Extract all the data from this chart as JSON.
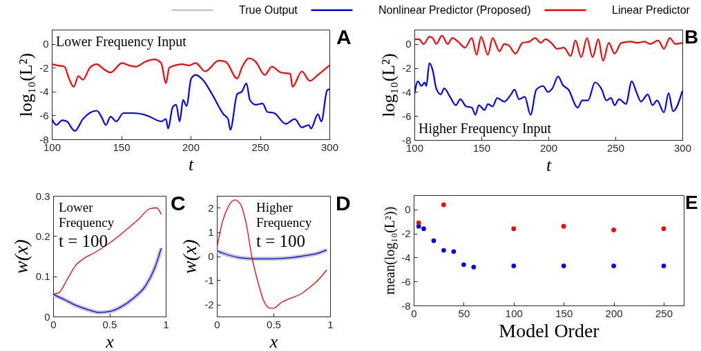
{
  "chart_data": [
    {
      "type": "line",
      "xlabel": "t",
      "ylabel": "log₁₀(L²)",
      "xlim": [
        100,
        300
      ],
      "ylim": [
        -8,
        1.2
      ],
      "xticks": [
        100,
        150,
        200,
        250,
        300
      ],
      "yticks": [
        -8,
        -6,
        -4,
        -2,
        0
      ],
      "annotations": [
        "A",
        "Lower Frequency Input"
      ],
      "series": [
        {
          "color": "#0000ff",
          "x": [
            100,
            103.3,
            107.5,
            110.8,
            116.6,
            122.4,
            132.4,
            135.7,
            139,
            142.3,
            146.5,
            151.5,
            158.9,
            165.6,
            170.5,
            178.8,
            182.2,
            183.8,
            187.1,
            189.6,
            192.1,
            194.6,
            197.1,
            200.4,
            203.7,
            208.7,
            215.4,
            223.7,
            227,
            228.6,
            233.6,
            236.9,
            240.2,
            242.7,
            246.9,
            251.9,
            255.2,
            260.2,
            268.5,
            275.1,
            280.1,
            285.1,
            286.7,
            291.7,
            294.2,
            298.3,
            300
          ],
          "values": [
            -6.3,
            -6.8,
            -6.4,
            -6.5,
            -7.3,
            -6.3,
            -5.6,
            -6.1,
            -6.8,
            -6.1,
            -6.5,
            -5.8,
            -5.8,
            -5.9,
            -6.1,
            -6.5,
            -6.3,
            -7.1,
            -5.3,
            -5.1,
            -6.5,
            -4.7,
            -5.2,
            -2.9,
            -2.6,
            -3,
            -4.2,
            -5.9,
            -6.3,
            -7.2,
            -4.2,
            -4,
            -3.3,
            -4.7,
            -5.1,
            -5,
            -5.7,
            -5.8,
            -6.7,
            -6.3,
            -7,
            -6.8,
            -7.1,
            -5.9,
            -6.5,
            -3.9,
            -3.8
          ]
        },
        {
          "color": "#ff0000",
          "x": [
            100,
            104.1,
            109.1,
            112.4,
            115.8,
            119.1,
            122.4,
            127.4,
            132.4,
            137.3,
            142.3,
            150.6,
            155.6,
            160.6,
            167.2,
            173.9,
            178.8,
            182.2,
            184.6,
            188.8,
            193.8,
            198.8,
            203.7,
            210.4,
            220.3,
            225.3,
            233.6,
            236.9,
            241.9,
            246.9,
            253.5,
            258.5,
            265.1,
            271.8,
            273.4,
            280.1,
            285.9,
            291.7,
            300
          ],
          "values": [
            -1.7,
            -1.8,
            -1.9,
            -2.9,
            -3.6,
            -2.7,
            -3,
            -2,
            -1.7,
            -2.1,
            -2.4,
            -1.6,
            -1.8,
            -1.9,
            -1.5,
            -1.3,
            -1.6,
            -3.3,
            -2,
            -1.8,
            -1.7,
            -1.8,
            -1.6,
            -2.3,
            -1.4,
            -1.5,
            -2.9,
            -2,
            -1.2,
            -1.5,
            -2.6,
            -1.9,
            -2.4,
            -2.5,
            -3.6,
            -2.3,
            -3.1,
            -2.6,
            -1.8
          ]
        }
      ]
    },
    {
      "type": "line",
      "xlabel": "t",
      "ylabel": "log₁₀(L²)",
      "xlim": [
        100,
        300
      ],
      "ylim": [
        -8,
        1.2
      ],
      "xticks": [
        100,
        150,
        200,
        250,
        300
      ],
      "yticks": [
        -8,
        -6,
        -4,
        -2,
        0
      ],
      "annotations": [
        "B",
        "Higher Frequency Input"
      ],
      "series": [
        {
          "color": "#0000ff",
          "x": [
            100,
            102.6,
            105.2,
            107.7,
            108.9,
            111.2,
            113.7,
            116.3,
            119.7,
            122.3,
            126.6,
            130.9,
            134.3,
            138.6,
            142.9,
            145.5,
            148.1,
            152.4,
            154.9,
            158.4,
            161.8,
            167,
            172.1,
            174.7,
            178.1,
            182.4,
            186.7,
            191,
            196.1,
            199.6,
            203,
            207.3,
            210.7,
            215,
            221.9,
            225.3,
            229.6,
            234.8,
            239.9,
            243.3,
            246.8,
            249.4,
            252.8,
            257.9,
            262.2,
            265.7,
            269.1,
            274.2,
            277.7,
            281.1,
            286.3,
            289.7,
            293.1,
            300
          ],
          "values": [
            -4.2,
            -3.1,
            -3.5,
            -3.2,
            -3.5,
            -1.6,
            -2.2,
            -3.7,
            -4.2,
            -3.7,
            -4.4,
            -5.1,
            -4.6,
            -5.2,
            -5.3,
            -5.9,
            -5.1,
            -5.5,
            -5,
            -5.2,
            -4.5,
            -4.8,
            -4.2,
            -3.8,
            -4.6,
            -4.4,
            -5.9,
            -3.8,
            -3.5,
            -4,
            -3.7,
            -2.7,
            -3.4,
            -3.8,
            -5.3,
            -4.7,
            -4.7,
            -3.2,
            -3.8,
            -4.7,
            -4.5,
            -5.1,
            -4.6,
            -5,
            -3.1,
            -4,
            -4.8,
            -4.2,
            -5.1,
            -4.7,
            -5.7,
            -4.1,
            -5.6,
            -3.9
          ]
        },
        {
          "color": "#ff0000",
          "x": [
            100,
            103.4,
            106.9,
            111.2,
            113.7,
            116.3,
            120.6,
            124.9,
            128.3,
            132.6,
            137.8,
            142.9,
            146.4,
            149.8,
            154.9,
            158.4,
            163.5,
            167,
            170.4,
            175.5,
            180.7,
            185.8,
            190.1,
            194.4,
            197.9,
            203,
            206.4,
            211.6,
            216.7,
            220.2,
            224.5,
            228.8,
            233,
            237.3,
            240.8,
            245.1,
            249.4,
            254.5,
            261.4,
            266.5,
            271.7,
            276,
            282,
            286.3,
            290.6,
            294.8,
            300
          ],
          "values": [
            0.4,
            0.4,
            0,
            0.6,
            0.5,
            0,
            0.7,
            0,
            0.5,
            0.2,
            -0.3,
            0.5,
            -0.9,
            0.6,
            -0.9,
            0.5,
            -0.6,
            0,
            -0.1,
            -0.8,
            0.1,
            0.2,
            0.5,
            0.1,
            0.4,
            0,
            -0.4,
            -0.3,
            -1,
            0.3,
            -1.1,
            0.5,
            -1.1,
            0.4,
            -1.4,
            0.1,
            -0.8,
            0.1,
            0.2,
            0.1,
            0.2,
            0,
            0.3,
            -0.4,
            0.5,
            0,
            0.1
          ]
        }
      ]
    },
    {
      "type": "line",
      "xlabel": "x",
      "ylabel": "w(x)",
      "xlim": [
        0,
        1
      ],
      "ylim": [
        0,
        0.3
      ],
      "xticks": [
        0,
        0.5,
        1
      ],
      "yticks": [
        0,
        0.1,
        0.2,
        0.3
      ],
      "legend": "top",
      "annotations": [
        "C",
        "Lower Frequency",
        "t = 100"
      ],
      "series": [
        {
          "name": "True Output",
          "color": "#c8c8c8",
          "x": [
            0,
            0.1,
            0.2,
            0.31,
            0.41,
            0.51,
            0.61,
            0.71,
            0.82,
            0.9,
            0.96
          ],
          "values": [
            0.055,
            0.042,
            0.028,
            0.017,
            0.01,
            0.013,
            0.025,
            0.045,
            0.076,
            0.119,
            0.17
          ]
        },
        {
          "name": "Nonlinear Predictor (Proposed)",
          "color": "#0000ff",
          "x": [
            0,
            0.1,
            0.2,
            0.31,
            0.41,
            0.51,
            0.61,
            0.71,
            0.82,
            0.9,
            0.96
          ],
          "values": [
            0.055,
            0.042,
            0.028,
            0.017,
            0.01,
            0.013,
            0.025,
            0.045,
            0.076,
            0.119,
            0.17
          ]
        },
        {
          "name": "Linear Predictor",
          "color": "#ff0000",
          "x": [
            0,
            0.05,
            0.12,
            0.2,
            0.27,
            0.37,
            0.45,
            0.55,
            0.65,
            0.76,
            0.86,
            0.92,
            0.96
          ],
          "values": [
            0.056,
            0.059,
            0.09,
            0.127,
            0.144,
            0.159,
            0.173,
            0.193,
            0.216,
            0.242,
            0.268,
            0.27,
            0.254
          ]
        }
      ]
    },
    {
      "type": "line",
      "xlabel": "x",
      "ylabel": "w(x)",
      "xlim": [
        0,
        1
      ],
      "ylim": [
        -2.5,
        2.5
      ],
      "xticks": [
        0,
        0.5,
        1
      ],
      "yticks": [
        -2,
        -1,
        0,
        1,
        2
      ],
      "annotations": [
        "D",
        "Higher Frequency",
        "t = 100"
      ],
      "series": [
        {
          "color": "#c8c8c8",
          "x": [
            0,
            0.1,
            0.21,
            0.34,
            0.48,
            0.64,
            0.79,
            0.89,
            0.97
          ],
          "values": [
            0.21,
            0.05,
            -0.07,
            -0.11,
            -0.11,
            -0.07,
            0.03,
            0.12,
            0.26
          ]
        },
        {
          "color": "#0000ff",
          "x": [
            0,
            0.1,
            0.21,
            0.34,
            0.48,
            0.64,
            0.79,
            0.89,
            0.97
          ],
          "values": [
            0.21,
            0.05,
            -0.07,
            -0.11,
            -0.11,
            -0.07,
            0.03,
            0.12,
            0.26
          ]
        },
        {
          "color": "#ff0000",
          "x": [
            0,
            0.05,
            0.1,
            0.16,
            0.21,
            0.26,
            0.31,
            0.37,
            0.41,
            0.46,
            0.5,
            0.56,
            0.64,
            0.74,
            0.81,
            0.87,
            0.97
          ],
          "values": [
            0.33,
            1.43,
            2.04,
            2.33,
            2.14,
            1.33,
            -0.05,
            -1.19,
            -1.81,
            -2.14,
            -2.16,
            -1.95,
            -1.76,
            -1.57,
            -1.33,
            -1.1,
            -0.57
          ]
        }
      ]
    },
    {
      "type": "scatter",
      "xlabel": "Model Order",
      "ylabel": "mean(log₁₀(L²))",
      "xlim": [
        0,
        270
      ],
      "ylim": [
        -8,
        1.2
      ],
      "xticks": [
        0,
        50,
        100,
        150,
        200,
        250
      ],
      "yticks": [
        -8,
        -6,
        -4,
        -2,
        0
      ],
      "marker": "circle",
      "annotations": [
        "E"
      ],
      "series": [
        {
          "color": "#0000ff",
          "x": [
            5,
            10,
            20,
            30,
            40,
            50,
            60,
            100,
            150,
            200,
            250
          ],
          "values": [
            -1.4,
            -1.6,
            -2.6,
            -3.4,
            -3.5,
            -4.6,
            -4.8,
            -4.7,
            -4.7,
            -4.7,
            -4.7
          ]
        },
        {
          "color": "#ff0000",
          "x": [
            5,
            30,
            100,
            150,
            200,
            250
          ],
          "values": [
            -1.1,
            0.4,
            -1.6,
            -1.4,
            -1.7,
            -1.6
          ]
        }
      ]
    }
  ]
}
